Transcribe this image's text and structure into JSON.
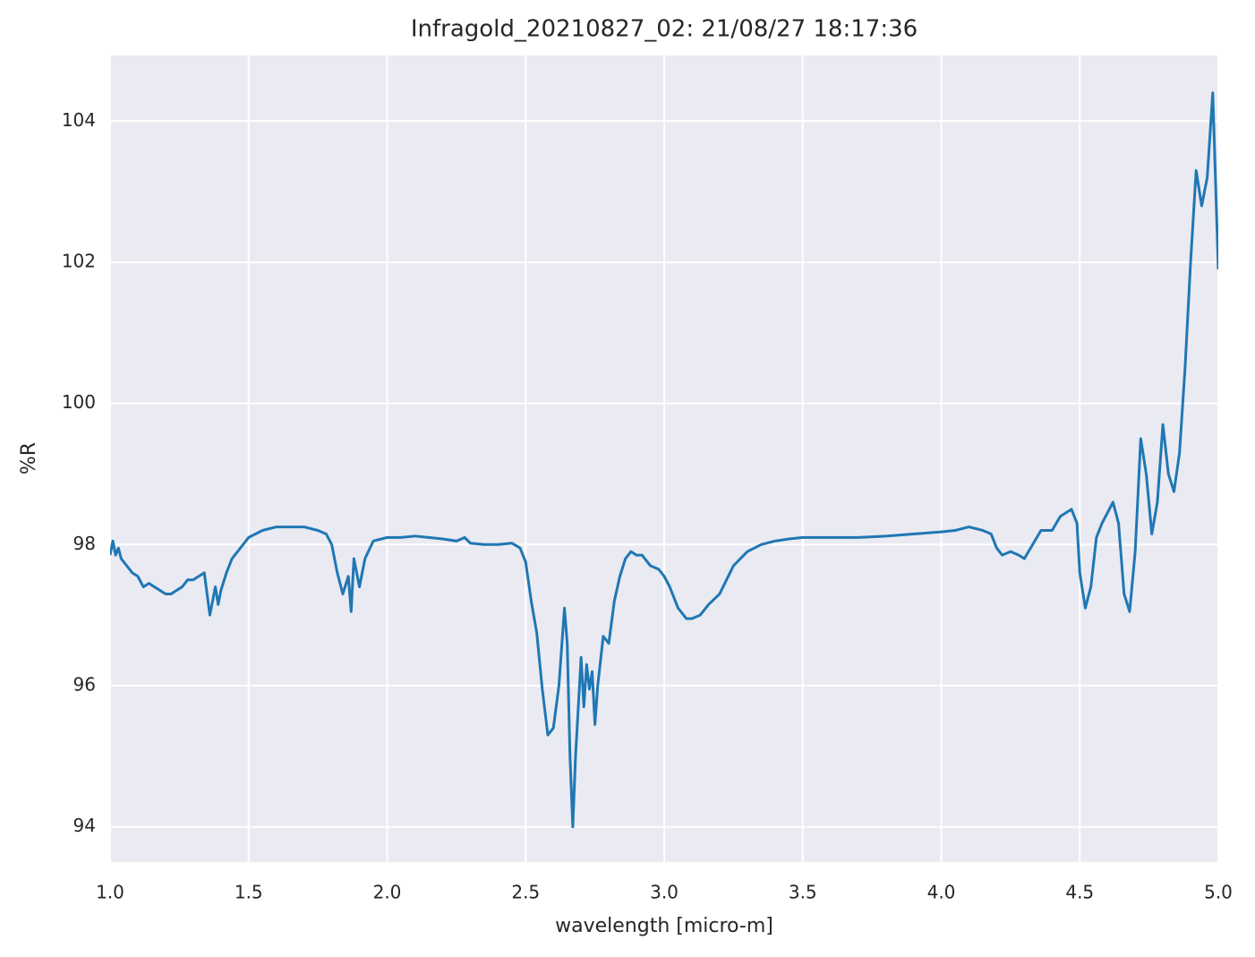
{
  "chart_data": {
    "type": "line",
    "title": "Infragold_20210827_02:  21/08/27 18:17:36",
    "xlabel": "wavelength [micro-m]",
    "ylabel": "%R",
    "xlim": [
      1,
      5
    ],
    "ylim": [
      93.5,
      104.93
    ],
    "xticks": [
      {
        "value": 1,
        "label": "1.0"
      },
      1.5,
      {
        "value": 2,
        "label": "2.0"
      },
      2.5,
      {
        "value": 3,
        "label": "3.0"
      },
      3.5,
      {
        "value": 4,
        "label": "4.0"
      },
      4.5,
      {
        "value": 5,
        "label": "5.0"
      }
    ],
    "yticks": [
      94,
      96,
      98,
      100,
      102,
      104
    ],
    "grid": true,
    "series": [
      {
        "color": "#1f77b4",
        "x": [
          1.0,
          1.01,
          1.02,
          1.03,
          1.04,
          1.05,
          1.06,
          1.08,
          1.1,
          1.12,
          1.14,
          1.16,
          1.18,
          1.2,
          1.22,
          1.24,
          1.26,
          1.28,
          1.3,
          1.32,
          1.34,
          1.36,
          1.38,
          1.39,
          1.4,
          1.42,
          1.44,
          1.46,
          1.48,
          1.5,
          1.55,
          1.6,
          1.65,
          1.7,
          1.75,
          1.78,
          1.8,
          1.82,
          1.84,
          1.86,
          1.87,
          1.88,
          1.9,
          1.92,
          1.95,
          2.0,
          2.05,
          2.1,
          2.15,
          2.2,
          2.25,
          2.28,
          2.3,
          2.35,
          2.4,
          2.45,
          2.48,
          2.5,
          2.52,
          2.54,
          2.56,
          2.58,
          2.6,
          2.62,
          2.64,
          2.65,
          2.66,
          2.67,
          2.68,
          2.7,
          2.71,
          2.72,
          2.73,
          2.74,
          2.75,
          2.76,
          2.78,
          2.8,
          2.82,
          2.84,
          2.86,
          2.88,
          2.9,
          2.92,
          2.95,
          2.98,
          3.0,
          3.02,
          3.05,
          3.08,
          3.1,
          3.13,
          3.16,
          3.2,
          3.25,
          3.3,
          3.35,
          3.4,
          3.45,
          3.5,
          3.6,
          3.7,
          3.8,
          3.9,
          4.0,
          4.05,
          4.1,
          4.15,
          4.18,
          4.2,
          4.22,
          4.25,
          4.28,
          4.3,
          4.33,
          4.36,
          4.4,
          4.43,
          4.47,
          4.49,
          4.5,
          4.52,
          4.54,
          4.56,
          4.58,
          4.6,
          4.62,
          4.64,
          4.66,
          4.68,
          4.7,
          4.72,
          4.74,
          4.76,
          4.78,
          4.8,
          4.82,
          4.84,
          4.86,
          4.88,
          4.9,
          4.92,
          4.94,
          4.96,
          4.98,
          5.0
        ],
        "values": [
          97.85,
          98.05,
          97.85,
          97.95,
          97.8,
          97.75,
          97.7,
          97.6,
          97.55,
          97.4,
          97.45,
          97.4,
          97.35,
          97.3,
          97.3,
          97.35,
          97.4,
          97.5,
          97.5,
          97.55,
          97.6,
          97.0,
          97.4,
          97.15,
          97.35,
          97.6,
          97.8,
          97.9,
          98.0,
          98.1,
          98.2,
          98.25,
          98.25,
          98.25,
          98.2,
          98.15,
          98.0,
          97.6,
          97.3,
          97.55,
          97.05,
          97.8,
          97.4,
          97.8,
          98.05,
          98.1,
          98.1,
          98.12,
          98.1,
          98.08,
          98.05,
          98.1,
          98.02,
          98.0,
          98.0,
          98.02,
          97.95,
          97.75,
          97.2,
          96.75,
          95.95,
          95.3,
          95.4,
          96.0,
          97.1,
          96.6,
          95.0,
          94.0,
          95.0,
          96.4,
          95.7,
          96.3,
          95.95,
          96.2,
          95.45,
          96.0,
          96.7,
          96.6,
          97.2,
          97.55,
          97.8,
          97.9,
          97.85,
          97.85,
          97.7,
          97.65,
          97.55,
          97.4,
          97.1,
          96.95,
          96.95,
          97.0,
          97.15,
          97.3,
          97.7,
          97.9,
          98.0,
          98.05,
          98.08,
          98.1,
          98.1,
          98.1,
          98.12,
          98.15,
          98.18,
          98.2,
          98.25,
          98.2,
          98.15,
          97.95,
          97.85,
          97.9,
          97.85,
          97.8,
          98.0,
          98.2,
          98.2,
          98.4,
          98.5,
          98.3,
          97.6,
          97.1,
          97.4,
          98.1,
          98.3,
          98.45,
          98.6,
          98.3,
          97.3,
          97.05,
          97.9,
          99.5,
          99.0,
          98.15,
          98.6,
          99.7,
          99.0,
          98.75,
          99.3,
          100.5,
          102.0,
          103.3,
          102.8,
          103.2,
          104.4,
          101.9
        ]
      }
    ]
  }
}
